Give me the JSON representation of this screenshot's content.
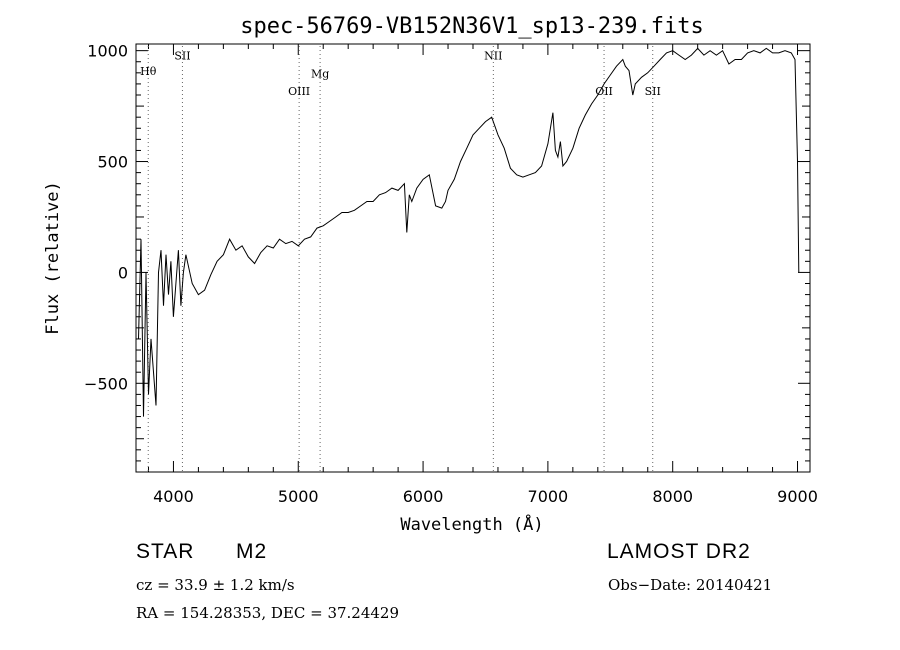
{
  "chart_data": {
    "type": "line",
    "title": "spec-56769-VB152N36V1_sp13-239.fits",
    "xlabel": "Wavelength (Å)",
    "ylabel": "Flux (relative)",
    "xlim": [
      3700,
      9100
    ],
    "ylim": [
      -900,
      1030
    ],
    "x_ticks": [
      4000,
      5000,
      6000,
      7000,
      8000,
      9000
    ],
    "x_tick_labels": [
      "4000",
      "5000",
      "6000",
      "7000",
      "8000",
      "9000"
    ],
    "y_ticks": [
      -500,
      0,
      500,
      1000
    ],
    "y_tick_labels": [
      "−500",
      "0",
      "500",
      "1000"
    ],
    "grid": false,
    "lines": [
      {
        "label": "Hθ",
        "x": 3798,
        "label_flux": 890
      },
      {
        "label": "SII",
        "x": 4072,
        "label_flux": 960
      },
      {
        "label": "OIII",
        "x": 5007,
        "label_flux": 800
      },
      {
        "label": "Mg",
        "x": 5175,
        "label_flux": 880
      },
      {
        "label": "NII",
        "x": 6563,
        "label_flux": 960
      },
      {
        "label": "OII",
        "x": 7450,
        "label_flux": 800
      },
      {
        "label": "SII",
        "x": 7840,
        "label_flux": 800
      }
    ],
    "series": [
      {
        "x": [
          3720,
          3740,
          3760,
          3780,
          3800,
          3820,
          3840,
          3860,
          3880,
          3900,
          3920,
          3940,
          3960,
          3980,
          4000,
          4020,
          4040,
          4060,
          4080,
          4100,
          4150,
          4200,
          4250,
          4300,
          4350,
          4400,
          4450,
          4500,
          4550,
          4600,
          4650,
          4700,
          4750,
          4800,
          4850,
          4900,
          4950,
          5000,
          5050,
          5100,
          5150,
          5200,
          5250,
          5300,
          5350,
          5400,
          5450,
          5500,
          5550,
          5600,
          5650,
          5700,
          5750,
          5800,
          5850,
          5870,
          5890,
          5910,
          5950,
          6000,
          6050,
          6100,
          6150,
          6180,
          6200,
          6250,
          6300,
          6350,
          6400,
          6450,
          6500,
          6550,
          6600,
          6650,
          6700,
          6750,
          6800,
          6850,
          6900,
          6950,
          7000,
          7020,
          7040,
          7060,
          7080,
          7100,
          7120,
          7150,
          7200,
          7250,
          7300,
          7350,
          7400,
          7450,
          7500,
          7550,
          7600,
          7620,
          7650,
          7680,
          7700,
          7750,
          7800,
          7850,
          7900,
          7950,
          8000,
          8050,
          8100,
          8150,
          8200,
          8250,
          8300,
          8350,
          8400,
          8450,
          8500,
          8550,
          8600,
          8650,
          8700,
          8750,
          8800,
          8850,
          8900,
          8950,
          8980,
          9000,
          9010
        ],
        "y": [
          -300,
          150,
          -650,
          0,
          -550,
          -300,
          -450,
          -600,
          0,
          100,
          -150,
          80,
          -100,
          50,
          -200,
          -50,
          100,
          -150,
          0,
          80,
          -50,
          -100,
          -80,
          -10,
          50,
          80,
          150,
          100,
          120,
          70,
          40,
          90,
          120,
          110,
          150,
          130,
          140,
          120,
          150,
          160,
          200,
          210,
          230,
          250,
          270,
          270,
          280,
          300,
          320,
          320,
          350,
          360,
          380,
          370,
          400,
          180,
          350,
          320,
          380,
          420,
          440,
          300,
          290,
          320,
          370,
          420,
          500,
          560,
          620,
          650,
          680,
          700,
          620,
          560,
          470,
          440,
          430,
          440,
          450,
          480,
          580,
          650,
          720,
          550,
          520,
          590,
          480,
          500,
          560,
          650,
          710,
          760,
          800,
          850,
          890,
          930,
          960,
          930,
          910,
          800,
          850,
          880,
          900,
          930,
          960,
          990,
          1000,
          980,
          960,
          980,
          1010,
          980,
          1000,
          980,
          1000,
          940,
          960,
          960,
          990,
          1000,
          990,
          1010,
          990,
          990,
          1000,
          990,
          960,
          500,
          0
        ]
      }
    ]
  },
  "info": {
    "object_type": "STAR",
    "subclass": "M2",
    "survey": "LAMOST DR2",
    "cz": "cz = 33.9 ± 1.2 km/s",
    "obs_date": "Obs−Date: 20140421",
    "coords": "RA = 154.28353, DEC =  37.24429"
  }
}
